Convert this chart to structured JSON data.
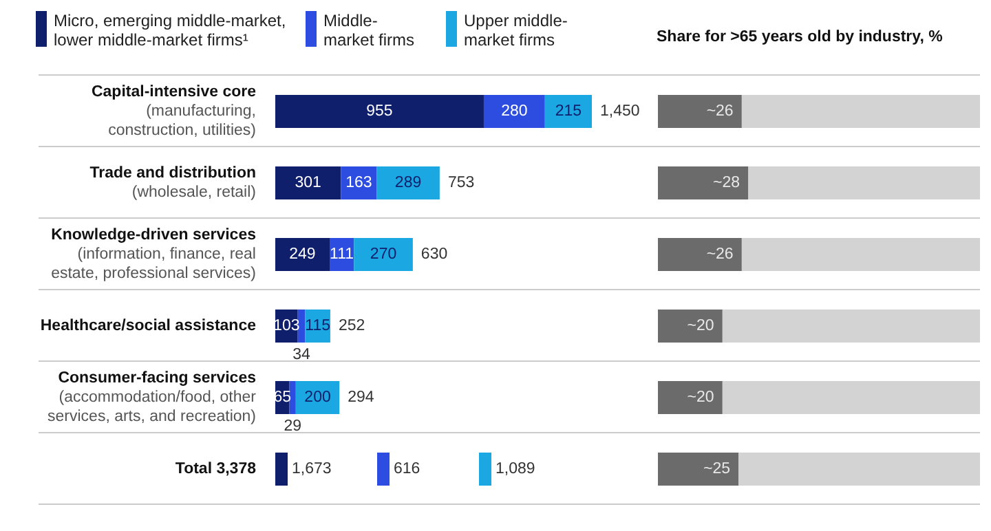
{
  "chart_data": [
    {
      "type": "bar",
      "orientation": "horizontal",
      "stacked": true,
      "tick_labels": "y",
      "legend": "top left",
      "data_labels": true,
      "categories": [
        "Capital-intensive core (manufacturing, construction, utilities)",
        "Trade and distribution (wholesale, retail)",
        "Knowledge-driven services (information, finance, real estate, professional services)",
        "Healthcare/social assistance",
        "Consumer-facing services (accommodation/food, other services, arts, and recreation)",
        "Total 3,378"
      ],
      "series": [
        {
          "name": "Micro, emerging middle-market, lower middle-market firms¹",
          "color": "#0f1f6b",
          "values": [
            955,
            301,
            249,
            103,
            65,
            null
          ]
        },
        {
          "name": "Middle-market firms",
          "color": "#2d4de0",
          "values": [
            280,
            163,
            111,
            34,
            29,
            null
          ]
        },
        {
          "name": "Upper middle-market firms",
          "color": "#1ba7e1",
          "values": [
            215,
            289,
            270,
            115,
            200,
            null
          ]
        }
      ],
      "totals": [
        "1,450",
        "753",
        "630",
        "252",
        "294"
      ],
      "annotations": [
        "1,673",
        "616",
        "1,089"
      ]
    },
    {
      "type": "bar",
      "orientation": "horizontal",
      "title": "Share for >65 years old by industry, %",
      "tick_labels": false,
      "categories": [
        null,
        null,
        null,
        null,
        null,
        null
      ],
      "values": [
        26,
        28,
        26,
        20,
        20,
        25
      ],
      "value_labels": [
        "~26",
        "~28",
        "~26",
        "~20",
        "~20",
        "~25"
      ],
      "color": "#6b6b6b",
      "xlim": [
        0,
        100
      ]
    }
  ]
}
